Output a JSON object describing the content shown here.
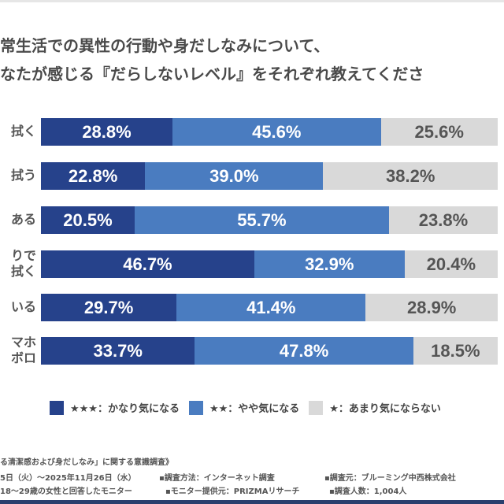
{
  "title_lines": [
    "常生活での異性の行動や身だしなみについて、",
    "なたが感じる『だらしないレベル』をそれぞれ教えてくださ"
  ],
  "colors": {
    "very": "#26428b",
    "somewhat": "#4a7cc0",
    "not": "#d9d9d9"
  },
  "chart_data": {
    "type": "bar",
    "orientation": "horizontal",
    "stacked": true,
    "unit": "%",
    "categories": [
      "拭く",
      "拭う",
      "ある",
      "りで\n拭く",
      "いる",
      "マホ\nボロ"
    ],
    "series": [
      {
        "name": "★★★：かなり気になる",
        "values": [
          28.8,
          22.8,
          20.5,
          46.7,
          29.7,
          33.7
        ]
      },
      {
        "name": "★★：やや気になる",
        "values": [
          45.6,
          39.0,
          55.7,
          32.9,
          41.4,
          47.8
        ]
      },
      {
        "name": "★：あまり気にならない",
        "values": [
          25.6,
          38.2,
          23.8,
          20.4,
          28.9,
          18.5
        ]
      }
    ],
    "legend_position": "bottom"
  },
  "footer": {
    "line1": "る清潔感および身だしなみ」に関する意識調査》",
    "line2a": "5日（火）～2025年11月26日（水）",
    "line2b": "▪調査方法：インターネット調査",
    "line2c": "▪調査元：ブルーミング中西株式会社",
    "line3a": "18～29歳の女性と回答したモニター",
    "line3b": "▪モニター提供元：PRIZMAリサーチ",
    "line3c": "▪調査人数：1,004人"
  }
}
